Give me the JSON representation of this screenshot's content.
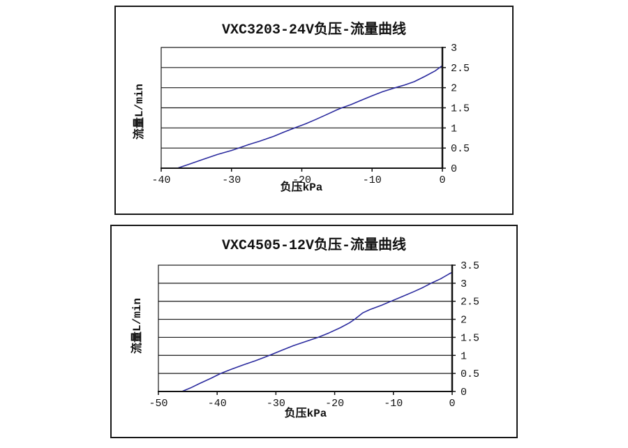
{
  "page": {
    "background": "#ffffff",
    "panel_border_color": "#161616",
    "curve_color": "#2a2a9e"
  },
  "chart_data": [
    {
      "type": "line",
      "title": "VXC3203-24V负压-流量曲线",
      "xlabel": "负压kPa",
      "ylabel": "流量L/min",
      "xlim": [
        -40,
        0
      ],
      "ylim": [
        0,
        3
      ],
      "x_ticks": [
        -40,
        -30,
        -20,
        -10,
        0
      ],
      "y_ticks": [
        0,
        0.5,
        1,
        1.5,
        2,
        2.5,
        3
      ],
      "grid": "horizontal",
      "y_axis_side": "right",
      "legend": false,
      "line_color": "#2a2a9e",
      "series": [
        {
          "name": "负压-流量",
          "points": [
            [
              -37.7,
              0
            ],
            [
              -36,
              0.1
            ],
            [
              -34,
              0.22
            ],
            [
              -32,
              0.34
            ],
            [
              -30,
              0.44
            ],
            [
              -29,
              0.5
            ],
            [
              -27.5,
              0.59
            ],
            [
              -26,
              0.67
            ],
            [
              -24,
              0.79
            ],
            [
              -22.5,
              0.9
            ],
            [
              -21,
              1.0
            ],
            [
              -19.5,
              1.1
            ],
            [
              -18,
              1.21
            ],
            [
              -16.5,
              1.33
            ],
            [
              -15,
              1.45
            ],
            [
              -14.3,
              1.5
            ],
            [
              -13,
              1.58
            ],
            [
              -11.5,
              1.69
            ],
            [
              -10,
              1.8
            ],
            [
              -8.5,
              1.9
            ],
            [
              -6.7,
              2.0
            ],
            [
              -5.5,
              2.06
            ],
            [
              -4,
              2.15
            ],
            [
              -2.5,
              2.28
            ],
            [
              -1,
              2.42
            ],
            [
              0,
              2.55
            ]
          ]
        }
      ]
    },
    {
      "type": "line",
      "title": "VXC4505-12V负压-流量曲线",
      "xlabel": "负压kPa",
      "ylabel": "流量L/min",
      "xlim": [
        -50,
        0
      ],
      "ylim": [
        0,
        3.5
      ],
      "x_ticks": [
        -50,
        -40,
        -30,
        -20,
        -10,
        0
      ],
      "y_ticks": [
        0,
        0.5,
        1,
        1.5,
        2,
        2.5,
        3,
        3.5
      ],
      "grid": "horizontal",
      "y_axis_side": "right",
      "legend": false,
      "line_color": "#2a2a9e",
      "series": [
        {
          "name": "负压-流量",
          "points": [
            [
              -46,
              0
            ],
            [
              -44.5,
              0.1
            ],
            [
              -43,
              0.22
            ],
            [
              -41,
              0.37
            ],
            [
              -39.4,
              0.5
            ],
            [
              -37.5,
              0.62
            ],
            [
              -35.5,
              0.74
            ],
            [
              -33.5,
              0.85
            ],
            [
              -31.1,
              1.0
            ],
            [
              -29,
              1.14
            ],
            [
              -27,
              1.27
            ],
            [
              -25,
              1.38
            ],
            [
              -22.8,
              1.5
            ],
            [
              -21,
              1.62
            ],
            [
              -19,
              1.77
            ],
            [
              -17.5,
              1.9
            ],
            [
              -16.6,
              2.0
            ],
            [
              -15.2,
              2.18
            ],
            [
              -14,
              2.27
            ],
            [
              -12,
              2.39
            ],
            [
              -10.4,
              2.5
            ],
            [
              -8.5,
              2.63
            ],
            [
              -6.5,
              2.77
            ],
            [
              -5,
              2.88
            ],
            [
              -3.6,
              3.0
            ],
            [
              -2,
              3.12
            ],
            [
              -0.5,
              3.26
            ],
            [
              0,
              3.3
            ]
          ]
        }
      ]
    }
  ]
}
